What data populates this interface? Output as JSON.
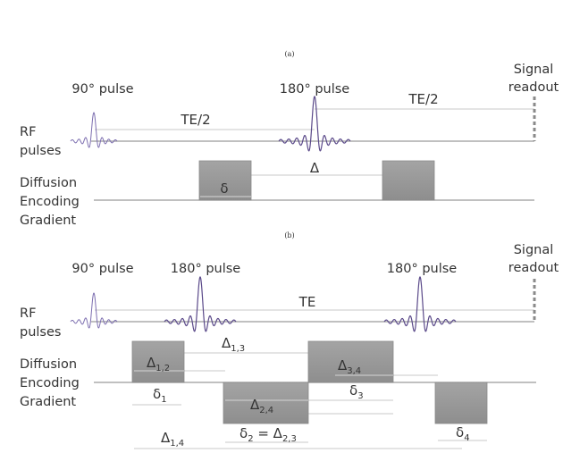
{
  "panel_a": {
    "tag": "(a)",
    "pulse_90": "90° pulse",
    "pulse_180": "180° pulse",
    "signal_line1": "Signal",
    "signal_line2": "readout",
    "rf_line1": "RF",
    "rf_line2": "pulses",
    "diff_line1": "Diffusion",
    "diff_line2": "Encoding",
    "diff_line3": "Gradient",
    "te_half_1": "TE/2",
    "te_half_2": "TE/2",
    "delta_big": "Δ",
    "delta_small": "δ"
  },
  "panel_b": {
    "tag": "(b)",
    "pulse_90": "90° pulse",
    "pulse_180_first": "180° pulse",
    "pulse_180_second": "180° pulse",
    "signal_line1": "Signal",
    "signal_line2": "readout",
    "rf_line1": "RF",
    "rf_line2": "pulses",
    "diff_line1": "Diffusion",
    "diff_line2": "Encoding",
    "diff_line3": "Gradient",
    "te": "TE",
    "d12_base": "Δ",
    "d12_sub": "1,2",
    "d13_base": "Δ",
    "d13_sub": "1,3",
    "d34_base": "Δ",
    "d34_sub": "3,4",
    "d24_base": "Δ",
    "d24_sub": "2,4",
    "d14_base": "Δ",
    "d14_sub": "1,4",
    "s1_base": "δ",
    "s1_sub": "1",
    "s2_base": "δ",
    "s2_sub": "2",
    "s2_eq": " = ",
    "d23_base": "Δ",
    "d23_sub": "2,3",
    "s3_base": "δ",
    "s3_sub": "3",
    "s4_base": "δ",
    "s4_sub": "4"
  },
  "colors": {
    "pulse": "#5b4a8a",
    "pulse_light": "#7d6fb0",
    "gradient_block": "#9a9a9a",
    "axis": "#9a9a9a",
    "bracket": "#c8c8c8",
    "readout": "#8a8a8a"
  }
}
